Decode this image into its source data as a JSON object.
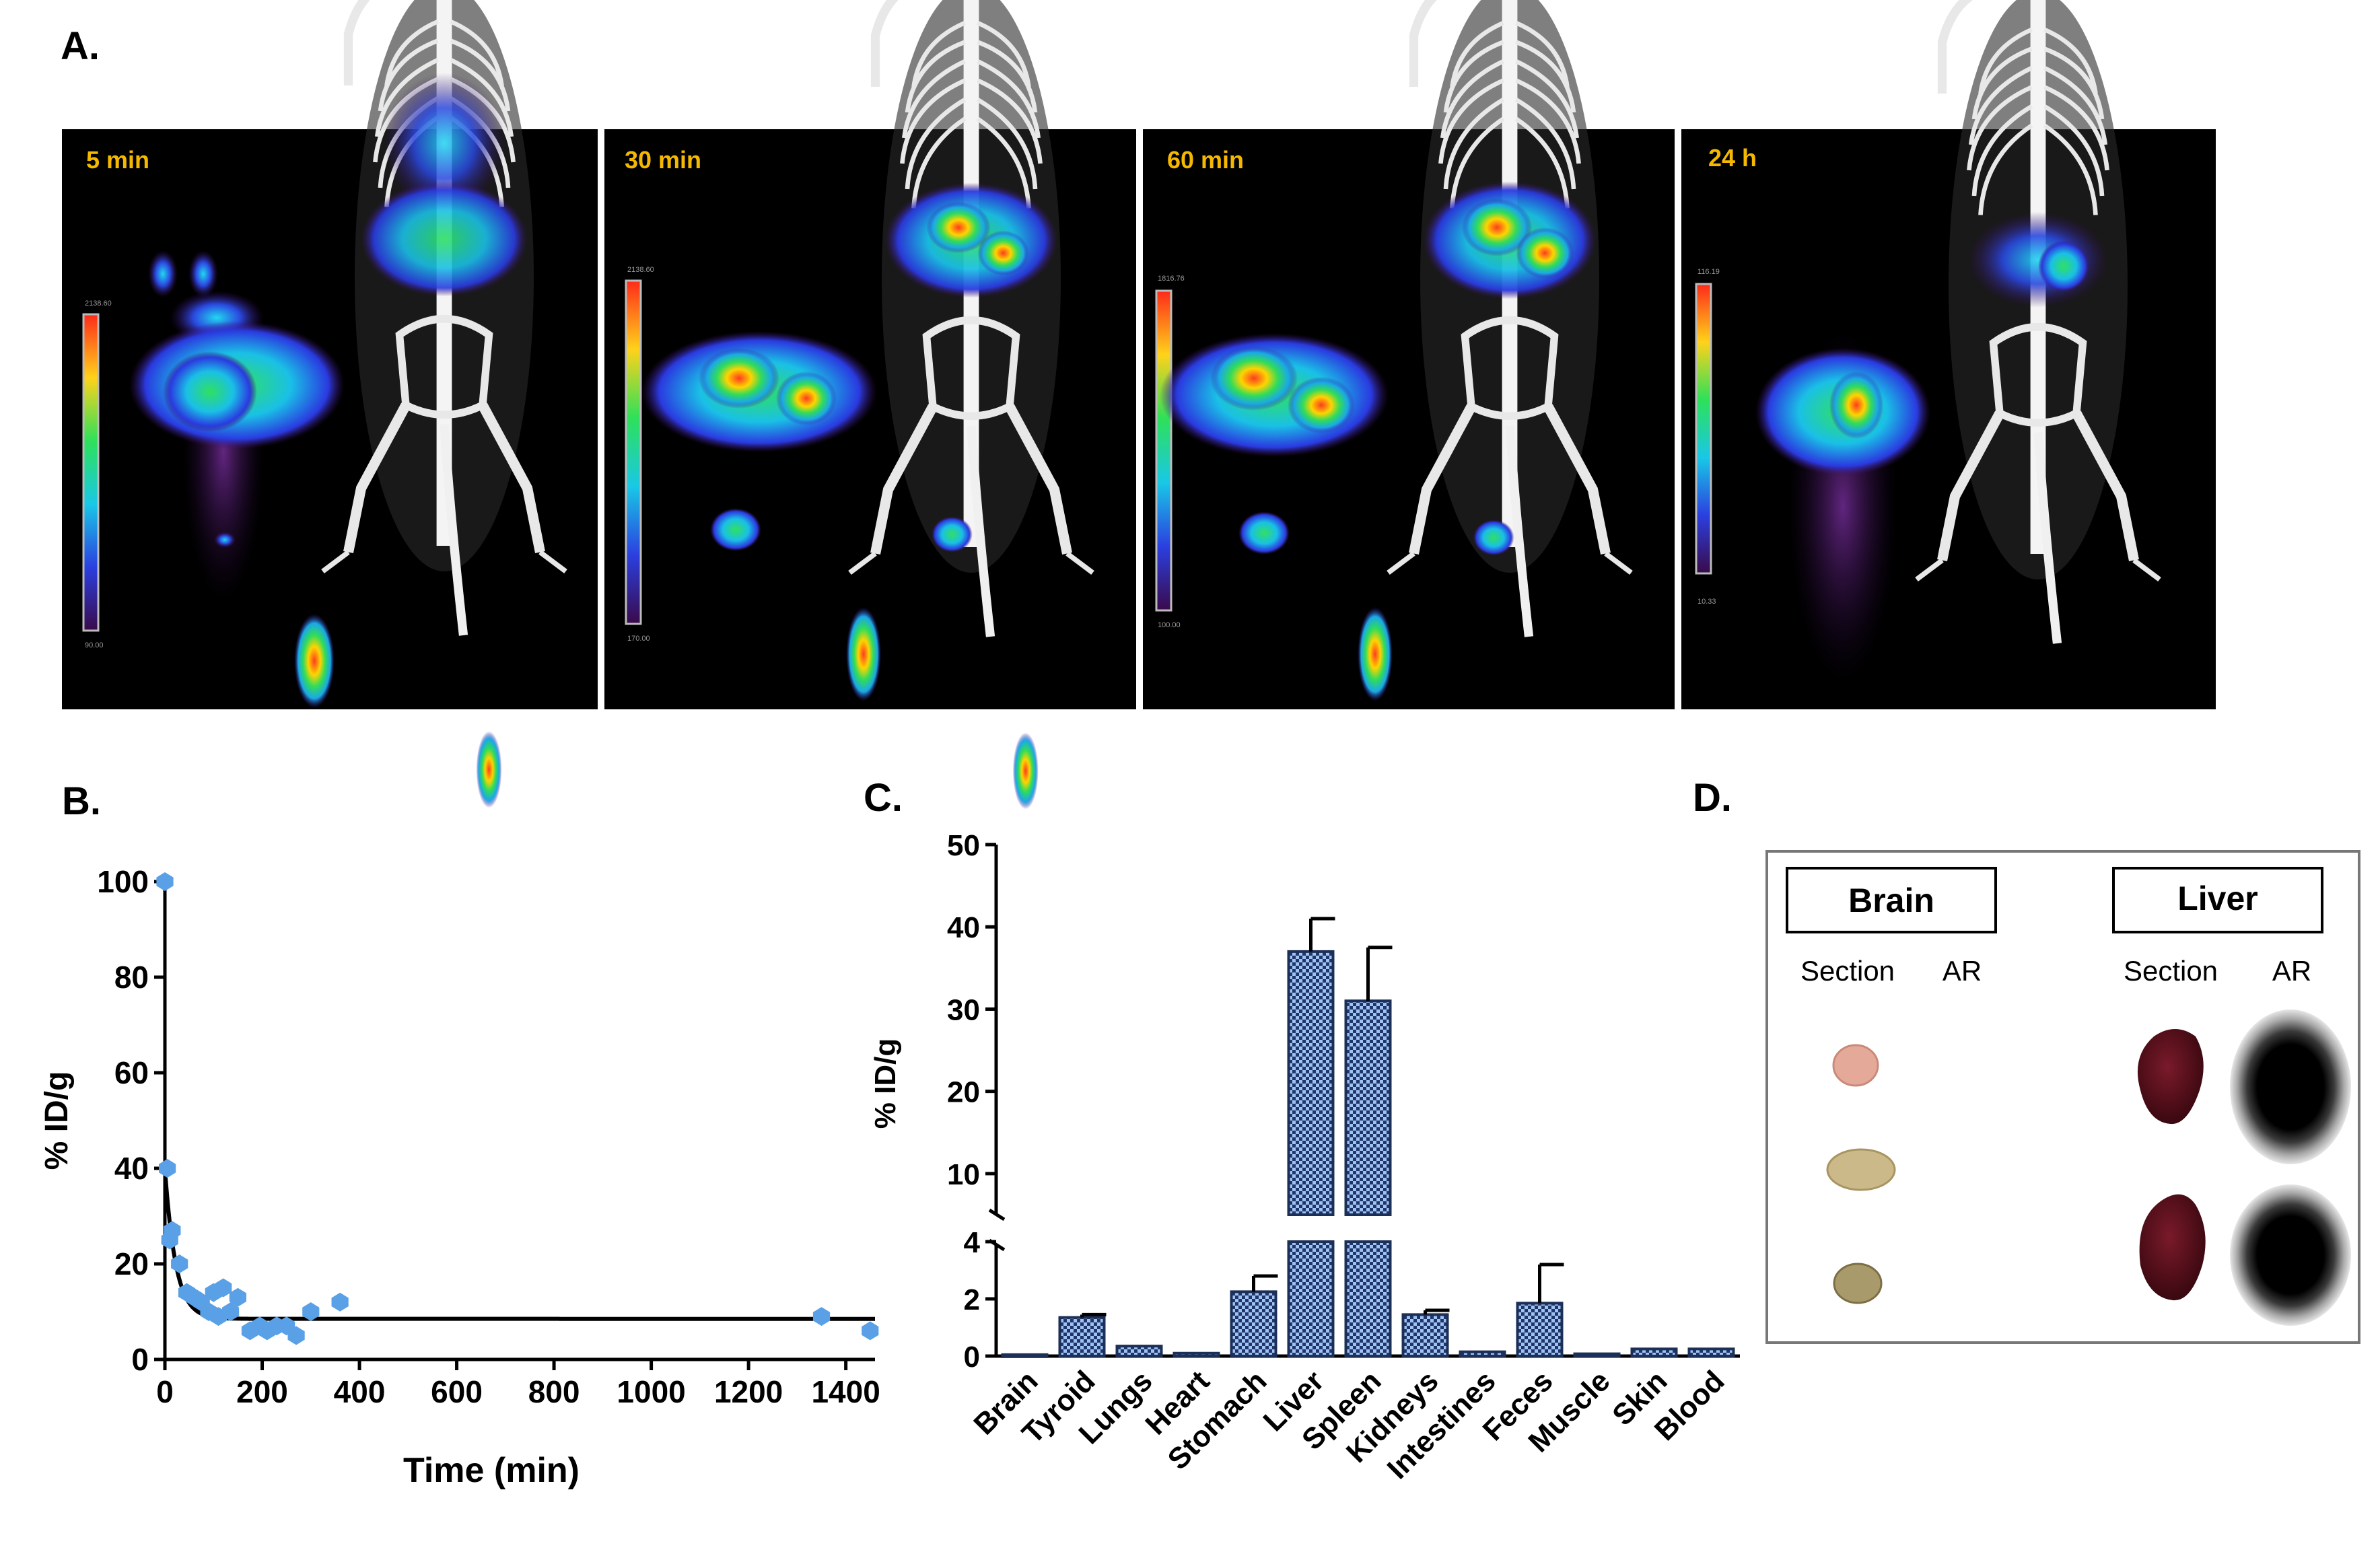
{
  "panel_labels": {
    "a": "A.",
    "b": "B.",
    "c": "C.",
    "d": "D."
  },
  "imaging": {
    "frames": [
      {
        "time_label": "5 min",
        "scale_max": "2138.60",
        "scale_min": "90.00"
      },
      {
        "time_label": "30 min",
        "scale_max": "2138.60",
        "scale_min": "170.00"
      },
      {
        "time_label": "60 min",
        "scale_max": "1816.76",
        "scale_min": "100.00"
      },
      {
        "time_label": "24 h",
        "scale_max": "116.19",
        "scale_min": "10.33"
      }
    ]
  },
  "colors": {
    "accent_yellow": "#f5b800",
    "point_blue": "#5aa0e6",
    "bar_fill": "#9ec3f2",
    "bar_stroke": "#1c2f57"
  },
  "chart_data": [
    {
      "type": "scatter",
      "title": "B.",
      "xlabel": "Time (min)",
      "ylabel": "% ID/g",
      "xlim": [
        0,
        1460
      ],
      "ylim": [
        0,
        100
      ],
      "xticks": [
        0,
        200,
        400,
        600,
        800,
        1000,
        1200,
        1400
      ],
      "yticks": [
        0,
        20,
        40,
        60,
        80,
        100
      ],
      "points": [
        [
          0,
          100
        ],
        [
          5,
          40
        ],
        [
          10,
          25
        ],
        [
          15,
          27
        ],
        [
          30,
          20
        ],
        [
          45,
          14
        ],
        [
          60,
          13
        ],
        [
          75,
          12
        ],
        [
          90,
          10
        ],
        [
          100,
          14
        ],
        [
          110,
          9
        ],
        [
          120,
          15
        ],
        [
          135,
          10
        ],
        [
          150,
          13
        ],
        [
          175,
          6
        ],
        [
          195,
          7
        ],
        [
          210,
          6
        ],
        [
          230,
          7
        ],
        [
          250,
          7
        ],
        [
          270,
          5
        ],
        [
          300,
          10
        ],
        [
          360,
          12
        ],
        [
          1350,
          9
        ],
        [
          1450,
          6
        ]
      ],
      "fit": {
        "type": "exponential decay",
        "plateau": 8.5,
        "y0": 40,
        "k": 0.045
      }
    },
    {
      "type": "bar",
      "title": "C.",
      "ylabel": "% ID/g",
      "categories": [
        "Brain",
        "Tyroid",
        "Lungs",
        "Heart",
        "Stomach",
        "Liver",
        "Spleen",
        "Kidneys",
        "Intestines",
        "Feces",
        "Muscle",
        "Skin",
        "Blood"
      ],
      "values": [
        0.05,
        1.35,
        0.35,
        0.1,
        2.25,
        37,
        31,
        1.45,
        0.15,
        1.85,
        0.08,
        0.25,
        0.25
      ],
      "errors": [
        0,
        0.1,
        0,
        0,
        0.55,
        4,
        6.5,
        0.15,
        0,
        1.35,
        0,
        0,
        0
      ],
      "axis_break": {
        "lower": [
          0,
          4
        ],
        "upper": [
          5,
          50
        ]
      },
      "yticks_lower": [
        0,
        2,
        4
      ],
      "yticks_upper": [
        10,
        20,
        30,
        40,
        50
      ]
    }
  ],
  "autoradiography": {
    "brain": {
      "title": "Brain",
      "section_label": "Section",
      "ar_label": "AR"
    },
    "liver": {
      "title": "Liver",
      "section_label": "Section",
      "ar_label": "AR"
    }
  }
}
